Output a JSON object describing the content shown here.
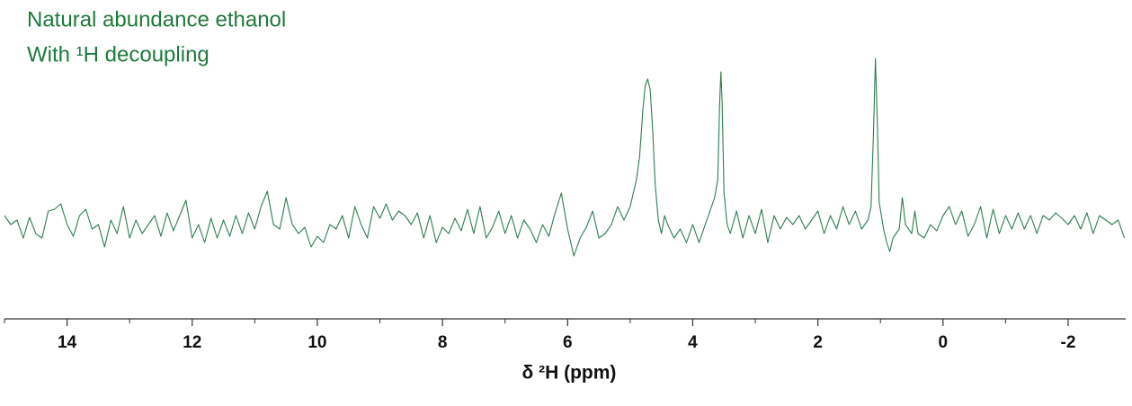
{
  "chart_data": {
    "type": "line",
    "title": "Natural abundance ethanol",
    "subtitle": "With ¹H decoupling",
    "x_label": "δ ²H (ppm)",
    "color": "#2e7d4f",
    "xlim": [
      15,
      -2.92
    ],
    "ylim": [
      -110,
      245
    ],
    "xticks": [
      14,
      12,
      10,
      8,
      6,
      4,
      2,
      0,
      -2
    ],
    "xminorticks": [
      15,
      13,
      11,
      9,
      7,
      5,
      3,
      1,
      -1
    ],
    "x": [
      15,
      14.9,
      14.8,
      14.7,
      14.6,
      14.5,
      14.4,
      14.3,
      14.2,
      14.1,
      14,
      13.9,
      13.8,
      13.7,
      13.6,
      13.5,
      13.4,
      13.3,
      13.2,
      13.1,
      13,
      12.9,
      12.8,
      12.7,
      12.6,
      12.5,
      12.4,
      12.3,
      12.2,
      12.1,
      12,
      11.9,
      11.8,
      11.7,
      11.6,
      11.5,
      11.4,
      11.3,
      11.2,
      11.1,
      11,
      10.9,
      10.8,
      10.7,
      10.6,
      10.5,
      10.4,
      10.3,
      10.2,
      10.1,
      10,
      9.9,
      9.8,
      9.7,
      9.6,
      9.5,
      9.4,
      9.3,
      9.2,
      9.1,
      9,
      8.9,
      8.8,
      8.7,
      8.6,
      8.5,
      8.4,
      8.3,
      8.2,
      8.1,
      8,
      7.9,
      7.8,
      7.7,
      7.6,
      7.5,
      7.4,
      7.3,
      7.2,
      7.1,
      7,
      6.9,
      6.8,
      6.7,
      6.6,
      6.5,
      6.4,
      6.3,
      6.2,
      6.1,
      6,
      5.9,
      5.8,
      5.7,
      5.6,
      5.5,
      5.4,
      5.3,
      5.2,
      5.1,
      5,
      4.9,
      4.85,
      4.8,
      4.76,
      4.72,
      4.68,
      4.64,
      4.6,
      4.55,
      4.5,
      4.45,
      4.4,
      4.3,
      4.2,
      4.1,
      4,
      3.9,
      3.8,
      3.7,
      3.65,
      3.6,
      3.57,
      3.55,
      3.53,
      3.5,
      3.45,
      3.4,
      3.3,
      3.2,
      3.1,
      3,
      2.9,
      2.8,
      2.7,
      2.6,
      2.5,
      2.4,
      2.3,
      2.2,
      2.1,
      2,
      1.9,
      1.8,
      1.7,
      1.6,
      1.5,
      1.4,
      1.3,
      1.2,
      1.15,
      1.11,
      1.08,
      1.05,
      1.02,
      0.95,
      0.9,
      0.85,
      0.8,
      0.7,
      0.65,
      0.6,
      0.5,
      0.45,
      0.4,
      0.3,
      0.2,
      0.1,
      0,
      -0.1,
      -0.2,
      -0.3,
      -0.4,
      -0.5,
      -0.6,
      -0.7,
      -0.8,
      -0.9,
      -1,
      -1.1,
      -1.2,
      -1.3,
      -1.4,
      -1.5,
      -1.6,
      -1.7,
      -1.8,
      -1.9,
      -2,
      -2.1,
      -2.2,
      -2.3,
      -2.4,
      -2.5,
      -2.6,
      -2.7,
      -2.8,
      -2.9
    ],
    "values": [
      5,
      -5,
      0,
      -20,
      3,
      -15,
      -20,
      10,
      12,
      18,
      -5,
      -18,
      5,
      12,
      -10,
      -5,
      -30,
      0,
      -15,
      15,
      -20,
      0,
      -15,
      -5,
      5,
      -18,
      8,
      -12,
      5,
      22,
      -20,
      -5,
      -25,
      2,
      -20,
      0,
      -18,
      5,
      -15,
      8,
      -10,
      15,
      32,
      -5,
      -10,
      25,
      -5,
      -15,
      -8,
      -30,
      -18,
      -25,
      -5,
      -10,
      5,
      -20,
      15,
      -5,
      -20,
      15,
      2,
      18,
      0,
      10,
      5,
      -5,
      8,
      -20,
      5,
      -25,
      -8,
      -15,
      2,
      -12,
      12,
      -15,
      15,
      -20,
      -8,
      10,
      -15,
      5,
      -20,
      0,
      -10,
      -25,
      -5,
      -18,
      8,
      30,
      -10,
      -40,
      -20,
      -8,
      10,
      -20,
      -15,
      -5,
      15,
      0,
      15,
      45,
      70,
      120,
      150,
      157,
      145,
      100,
      40,
      0,
      -15,
      5,
      -5,
      -20,
      -10,
      -25,
      -5,
      -25,
      -5,
      15,
      25,
      45,
      130,
      165,
      130,
      30,
      -5,
      -15,
      10,
      -20,
      5,
      -15,
      12,
      -25,
      5,
      -10,
      3,
      -5,
      5,
      -10,
      0,
      10,
      -15,
      5,
      -10,
      15,
      -5,
      10,
      -10,
      0,
      15,
      100,
      180,
      110,
      20,
      -10,
      -25,
      -35,
      -20,
      -10,
      25,
      -5,
      -15,
      10,
      -15,
      -20,
      -5,
      -12,
      5,
      15,
      -5,
      10,
      -18,
      -5,
      15,
      -20,
      12,
      -15,
      5,
      -10,
      8,
      -10,
      5,
      -15,
      5,
      0,
      8,
      2,
      -5,
      5,
      -10,
      8,
      -15,
      5,
      0,
      -5,
      0,
      -20
    ]
  }
}
